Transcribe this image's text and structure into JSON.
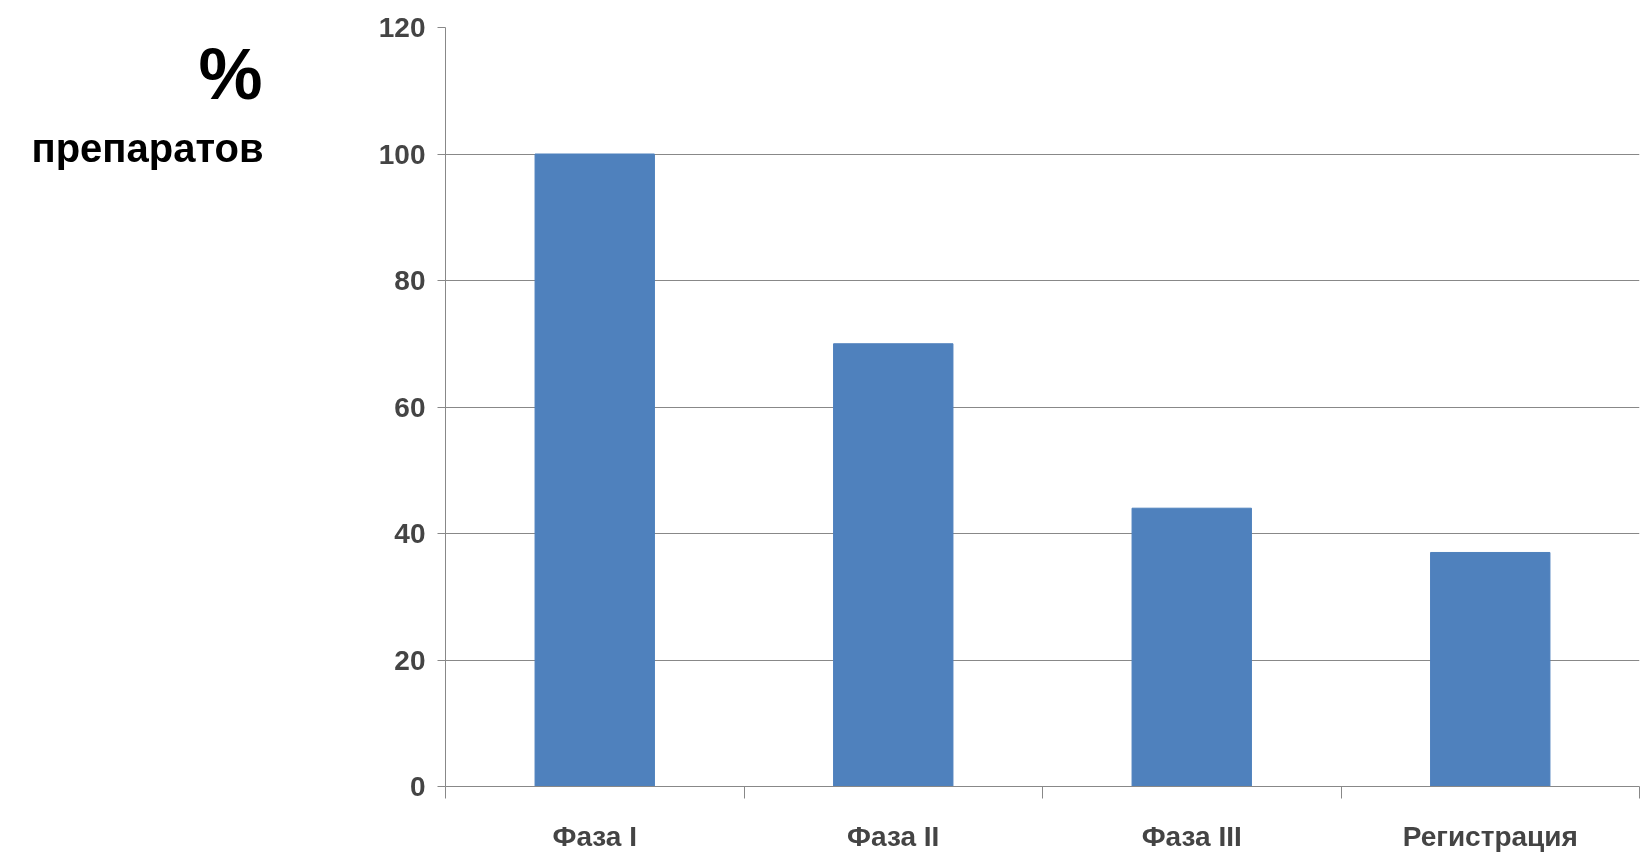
{
  "chart_data": {
    "type": "bar",
    "ylabel": "% препаратов",
    "categories": [
      "Фаза I",
      "Фаза II",
      "Фаза III",
      "Регистрация"
    ],
    "values": [
      100,
      70,
      44,
      37
    ],
    "color": "#4f81bd",
    "ylim": [
      0,
      120
    ],
    "yticks": [
      0,
      20,
      40,
      60,
      80,
      100,
      120
    ],
    "grid": "y"
  }
}
